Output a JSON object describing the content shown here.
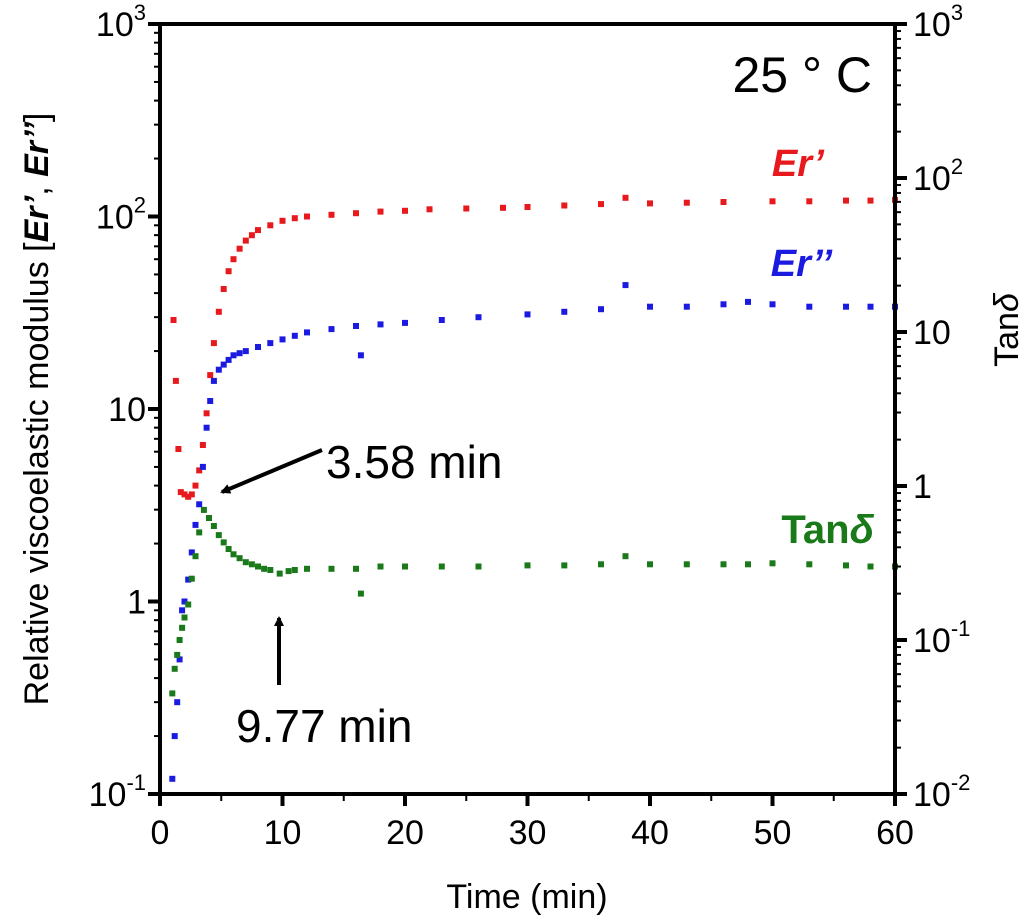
{
  "chart_data": {
    "type": "scatter",
    "title": "",
    "condition_label": "25 ° C",
    "xlabel": "Time (min)",
    "ylabel_left": {
      "text": "Relative viscoelastic modulus [",
      "er_prime": "Er’",
      "sep": ", ",
      "er_dprime": "Er’’",
      "close": "]"
    },
    "ylabel_right": {
      "base": "Tan",
      "delta": "δ"
    },
    "xlim": [
      0,
      60
    ],
    "ylim_left": [
      0.1,
      1000
    ],
    "ylim_right": [
      0.01,
      1000
    ],
    "yscale": "log",
    "x_ticks": [
      "0",
      "10",
      "20",
      "30",
      "40",
      "50",
      "60"
    ],
    "left_ticks": [
      {
        "value": 0.1,
        "base": "10",
        "exp": "-1"
      },
      {
        "value": 1,
        "base": "1",
        "exp": ""
      },
      {
        "value": 10,
        "base": "10",
        "exp": ""
      },
      {
        "value": 100,
        "base": "10",
        "exp": "2"
      },
      {
        "value": 1000,
        "base": "10",
        "exp": "3"
      }
    ],
    "right_ticks": [
      {
        "value": 0.01,
        "base": "10",
        "exp": "-2"
      },
      {
        "value": 0.1,
        "base": "10",
        "exp": "-1"
      },
      {
        "value": 1,
        "base": "1",
        "exp": ""
      },
      {
        "value": 10,
        "base": "10",
        "exp": ""
      },
      {
        "value": 100,
        "base": "10",
        "exp": "2"
      },
      {
        "value": 1000,
        "base": "10",
        "exp": "3"
      }
    ],
    "series": [
      {
        "name": "Er’",
        "axis": "left",
        "color": "#e8191c",
        "x": [
          1.1,
          1.3,
          1.5,
          1.7,
          2.0,
          2.3,
          2.6,
          2.9,
          3.2,
          3.5,
          3.8,
          4.1,
          4.4,
          4.8,
          5.2,
          5.6,
          6.0,
          6.5,
          7.0,
          7.5,
          8.0,
          9.0,
          10,
          11,
          12,
          14,
          16,
          18,
          20,
          22,
          25,
          28,
          30,
          33,
          36,
          38,
          40,
          43,
          46,
          50,
          53,
          56,
          58,
          60
        ],
        "values": [
          29,
          14,
          6.2,
          3.7,
          3.6,
          3.5,
          3.6,
          4.0,
          4.8,
          6.5,
          9.5,
          15,
          22,
          32,
          42,
          52,
          60,
          68,
          75,
          80,
          85,
          90,
          95,
          98,
          100,
          102,
          104,
          106,
          107,
          109,
          110,
          111,
          112,
          114,
          116,
          125,
          117,
          118,
          119,
          120,
          120,
          121,
          121,
          122
        ]
      },
      {
        "name": "Er’’",
        "axis": "left",
        "color": "#1a1ae0",
        "x": [
          1.0,
          1.2,
          1.4,
          1.6,
          1.8,
          2.0,
          2.3,
          2.6,
          2.9,
          3.2,
          3.5,
          3.8,
          4.1,
          4.4,
          4.8,
          5.2,
          5.6,
          6.0,
          6.5,
          7.0,
          8.0,
          9.0,
          10,
          11,
          12,
          14,
          16,
          16.4,
          18,
          20,
          23,
          26,
          30,
          33,
          36,
          38,
          40,
          43,
          46,
          48,
          50,
          53,
          56,
          58,
          60
        ],
        "values": [
          0.12,
          0.2,
          0.3,
          0.5,
          0.9,
          1.0,
          1.3,
          1.8,
          2.5,
          3.2,
          5.0,
          8.0,
          11,
          14,
          16,
          17,
          18,
          19,
          19.5,
          20,
          21,
          22,
          23,
          24,
          25,
          26,
          27,
          19,
          27.5,
          28,
          29,
          30,
          31,
          32,
          33,
          44,
          34,
          34,
          35,
          36,
          35,
          34,
          34,
          34,
          34
        ]
      },
      {
        "name": "Tanδ",
        "axis": "right",
        "color": "#1a7a1a",
        "x": [
          1.0,
          1.2,
          1.4,
          1.6,
          1.8,
          2.0,
          2.3,
          2.6,
          2.9,
          3.2,
          3.58,
          4.0,
          4.4,
          4.8,
          5.2,
          5.6,
          6.0,
          6.5,
          7.0,
          7.5,
          8.0,
          8.5,
          9.0,
          9.77,
          10.5,
          11,
          12,
          14,
          16,
          16.4,
          18,
          20,
          23,
          26,
          30,
          33,
          36,
          38,
          40,
          43,
          46,
          48,
          50,
          53,
          56,
          58,
          60
        ],
        "values": [
          0.045,
          0.065,
          0.08,
          0.1,
          0.12,
          0.14,
          0.17,
          0.25,
          0.35,
          0.5,
          0.7,
          0.62,
          0.55,
          0.48,
          0.43,
          0.39,
          0.36,
          0.34,
          0.32,
          0.31,
          0.3,
          0.29,
          0.285,
          0.27,
          0.28,
          0.285,
          0.29,
          0.29,
          0.29,
          0.2,
          0.3,
          0.3,
          0.3,
          0.3,
          0.305,
          0.305,
          0.31,
          0.35,
          0.31,
          0.31,
          0.31,
          0.31,
          0.315,
          0.31,
          0.305,
          0.3,
          0.3
        ]
      }
    ],
    "series_labels": [
      "Er’",
      "Er’’",
      "Tanδ"
    ],
    "annotations": [
      {
        "text": "3.58 min",
        "target_x": 3.58,
        "target_value": 3.5
      },
      {
        "text": "9.77 min",
        "target_x": 9.77,
        "target_value": 1.2
      }
    ],
    "grid": false,
    "legend": "inline labels at right"
  }
}
